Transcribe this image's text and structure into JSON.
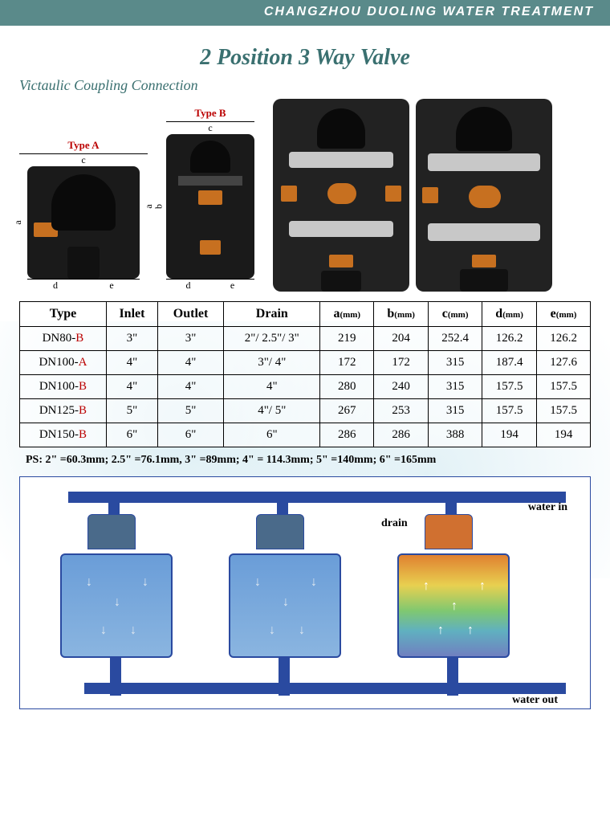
{
  "header": "CHANGZHOU DUOLING WATER TREATMENT",
  "title": "2 Position 3 Way Valve",
  "subtitle": "Victaulic Coupling Connection",
  "typeA": "Type A",
  "typeB": "Type B",
  "dims": {
    "a": "a",
    "b": "b",
    "c": "c",
    "d": "d",
    "e": "e"
  },
  "table": {
    "headers": [
      "Type",
      "Inlet",
      "Outlet",
      "Drain",
      "a(mm)",
      "b(mm)",
      "c(mm)",
      "d(mm)",
      "e(mm)"
    ],
    "rows": [
      {
        "type": "DN80-",
        "suffix": "B",
        "inlet": "3\"",
        "outlet": "3\"",
        "drain": "2\"/ 2.5\"/ 3\"",
        "a": "219",
        "b": "204",
        "c": "252.4",
        "d": "126.2",
        "e": "126.2"
      },
      {
        "type": "DN100-",
        "suffix": "A",
        "inlet": "4\"",
        "outlet": "4\"",
        "drain": "3\"/ 4\"",
        "a": "172",
        "b": "172",
        "c": "315",
        "d": "187.4",
        "e": "127.6"
      },
      {
        "type": "DN100-",
        "suffix": "B",
        "inlet": "4\"",
        "outlet": "4\"",
        "drain": "4\"",
        "a": "280",
        "b": "240",
        "c": "315",
        "d": "157.5",
        "e": "157.5"
      },
      {
        "type": "DN125-",
        "suffix": "B",
        "inlet": "5\"",
        "outlet": "5\"",
        "drain": "4\"/ 5\"",
        "a": "267",
        "b": "253",
        "c": "315",
        "d": "157.5",
        "e": "157.5"
      },
      {
        "type": "DN150-",
        "suffix": "B",
        "inlet": "6\"",
        "outlet": "6\"",
        "drain": "6\"",
        "a": "286",
        "b": "286",
        "c": "388",
        "d": "194",
        "e": "194"
      }
    ]
  },
  "ps": "PS: 2\" =60.3mm; 2.5\" =76.1mm, 3\" =89mm; 4\" = 114.3mm; 5\" =140mm; 6\" =165mm",
  "flow": {
    "water_in": "water in",
    "water_out": "water out",
    "drain": "drain"
  }
}
